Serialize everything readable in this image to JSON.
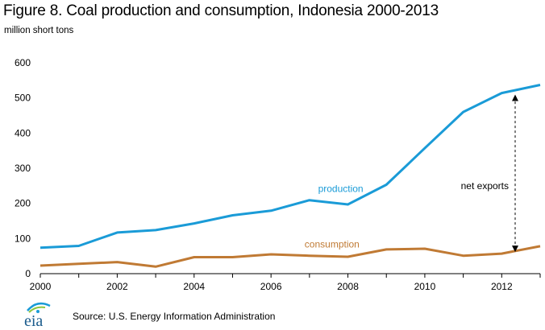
{
  "title": "Figure 8. Coal production and consumption, Indonesia 2000-2013",
  "unit_label": "million short tons",
  "source": "Source: U.S. Energy Information Administration",
  "logo_text": "eia",
  "chart_data": {
    "type": "line",
    "title": "Figure 8. Coal production and consumption, Indonesia 2000-2013",
    "ylabel": "million short tons",
    "xlabel": "",
    "x": [
      2000,
      2001,
      2002,
      2003,
      2004,
      2005,
      2006,
      2007,
      2008,
      2009,
      2010,
      2011,
      2012,
      2013
    ],
    "xlim": [
      2000,
      2013
    ],
    "ylim": [
      0,
      600
    ],
    "xticks": [
      2000,
      2002,
      2004,
      2006,
      2008,
      2010,
      2012
    ],
    "yticks": [
      0,
      100,
      200,
      300,
      400,
      500,
      600
    ],
    "grid": false,
    "series": [
      {
        "name": "production",
        "color": "#1a9bd7",
        "values": [
          74,
          79,
          117,
          124,
          143,
          166,
          179,
          209,
          197,
          253,
          357,
          460,
          514,
          537
        ]
      },
      {
        "name": "consumption",
        "color": "#c07a34",
        "values": [
          23,
          28,
          33,
          20,
          47,
          47,
          55,
          51,
          48,
          69,
          71,
          51,
          57,
          78
        ]
      }
    ],
    "annotations": [
      {
        "text": "net exports",
        "x": 2012.35,
        "from": 57,
        "to": 514
      }
    ]
  }
}
